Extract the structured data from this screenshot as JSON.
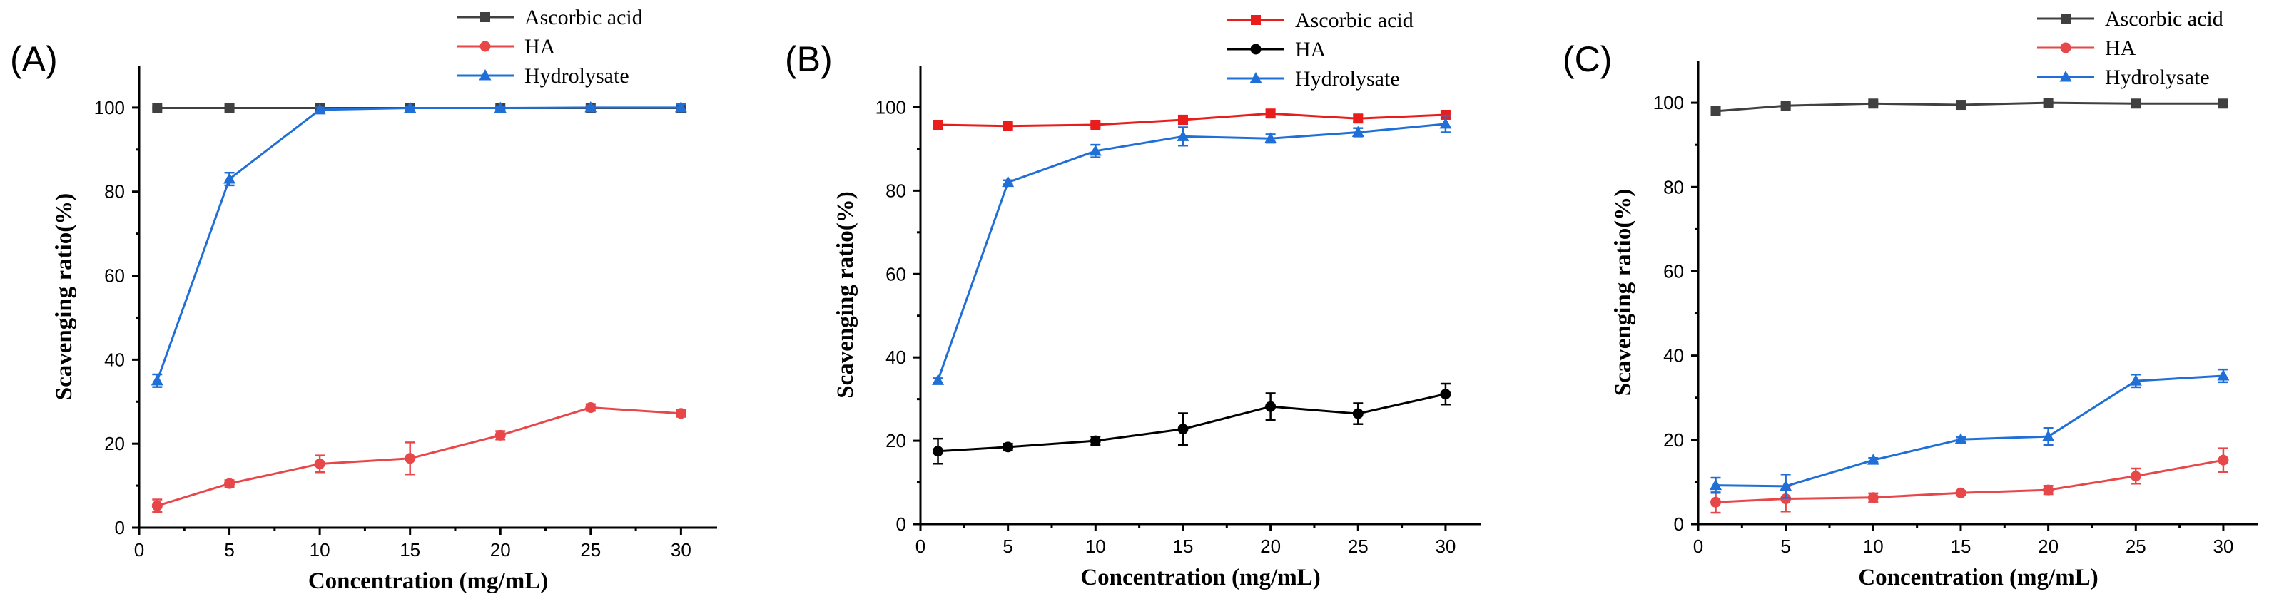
{
  "chart_data": [
    {
      "type": "line",
      "panel_label": "(A)",
      "xlabel": "Concentration (mg/mL)",
      "ylabel": "Scavenging ratio(%)",
      "xlim": [
        0,
        32
      ],
      "ylim": [
        0,
        110
      ],
      "xticks": [
        0,
        5,
        10,
        15,
        20,
        25,
        30
      ],
      "yticks": [
        0,
        20,
        40,
        60,
        80,
        100
      ],
      "x": [
        1,
        5,
        10,
        15,
        20,
        25,
        30
      ],
      "legend_position": "top",
      "series": [
        {
          "name": "Ascorbic acid",
          "color": "#404040",
          "marker": "square",
          "values": [
            99.9,
            99.9,
            99.9,
            99.9,
            99.9,
            99.9,
            99.9
          ],
          "errors": [
            0.3,
            0.3,
            0.3,
            0.3,
            0.3,
            0.3,
            0.3
          ]
        },
        {
          "name": "HA",
          "color": "#e8474a",
          "marker": "circle",
          "values": [
            5.2,
            10.5,
            15.2,
            16.5,
            22,
            28.6,
            27.2
          ],
          "errors": [
            1.5,
            0.8,
            2,
            3.8,
            1,
            0.8,
            0.8
          ]
        },
        {
          "name": "Hydrolysate",
          "color": "#1f6fd6",
          "marker": "triangle",
          "values": [
            35,
            83,
            99.5,
            99.9,
            99.9,
            100,
            100
          ],
          "errors": [
            1.5,
            1.5,
            0.5,
            0.3,
            0.3,
            0.5,
            0.8
          ]
        }
      ]
    },
    {
      "type": "line",
      "panel_label": "(B)",
      "xlabel": "Concentration (mg/mL)",
      "ylabel": "Scavenging ratio(%)",
      "xlim": [
        0,
        32
      ],
      "ylim": [
        0,
        110
      ],
      "xticks": [
        0,
        5,
        10,
        15,
        20,
        25,
        30
      ],
      "yticks": [
        0,
        20,
        40,
        60,
        80,
        100
      ],
      "x": [
        1,
        5,
        10,
        15,
        20,
        25,
        30
      ],
      "legend_position": "top",
      "series": [
        {
          "name": "Ascorbic acid",
          "color": "#ea1d1d",
          "marker": "square",
          "values": [
            95.8,
            95.5,
            95.8,
            97,
            98.5,
            97.3,
            98.2
          ],
          "errors": [
            0.5,
            0.5,
            0.5,
            1,
            0.8,
            0.8,
            0.8
          ]
        },
        {
          "name": "HA",
          "color": "#000000",
          "marker": "circle",
          "values": [
            17.5,
            18.5,
            20,
            22.8,
            28.2,
            26.5,
            31.2
          ],
          "errors": [
            3,
            0.8,
            1,
            3.8,
            3.2,
            2.5,
            2.5
          ]
        },
        {
          "name": "Hydrolysate",
          "color": "#1f6fd6",
          "marker": "triangle",
          "values": [
            34.5,
            82,
            89.5,
            93,
            92.5,
            94,
            96
          ],
          "errors": [
            0.5,
            0.5,
            1.5,
            2.2,
            1,
            1,
            2
          ]
        }
      ]
    },
    {
      "type": "line",
      "panel_label": "(C)",
      "xlabel": "Concentration (mg/mL)",
      "ylabel": "Scavenging ratio(%)",
      "xlim": [
        0,
        32
      ],
      "ylim": [
        0,
        110
      ],
      "xticks": [
        0,
        5,
        10,
        15,
        20,
        25,
        30
      ],
      "yticks": [
        0,
        20,
        40,
        60,
        80,
        100
      ],
      "x": [
        1,
        5,
        10,
        15,
        20,
        25,
        30
      ],
      "legend_position": "top",
      "series": [
        {
          "name": "Ascorbic acid",
          "color": "#404040",
          "marker": "square",
          "values": [
            98,
            99.3,
            99.8,
            99.5,
            100,
            99.8,
            99.8
          ],
          "errors": [
            0.5,
            0.5,
            0.3,
            0.3,
            0.3,
            0.3,
            0.3
          ]
        },
        {
          "name": "HA",
          "color": "#e8474a",
          "marker": "circle",
          "values": [
            5.2,
            6,
            6.3,
            7.4,
            8.1,
            11.4,
            15.2
          ],
          "errors": [
            2.5,
            3,
            1,
            0.5,
            1,
            1.8,
            2.8
          ]
        },
        {
          "name": "Hydrolysate",
          "color": "#1f6fd6",
          "marker": "triangle",
          "values": [
            9.2,
            9,
            15.2,
            20.1,
            20.8,
            34,
            35.2
          ],
          "errors": [
            1.8,
            2.8,
            0.5,
            0.5,
            2,
            1.5,
            1.5
          ]
        }
      ]
    }
  ]
}
